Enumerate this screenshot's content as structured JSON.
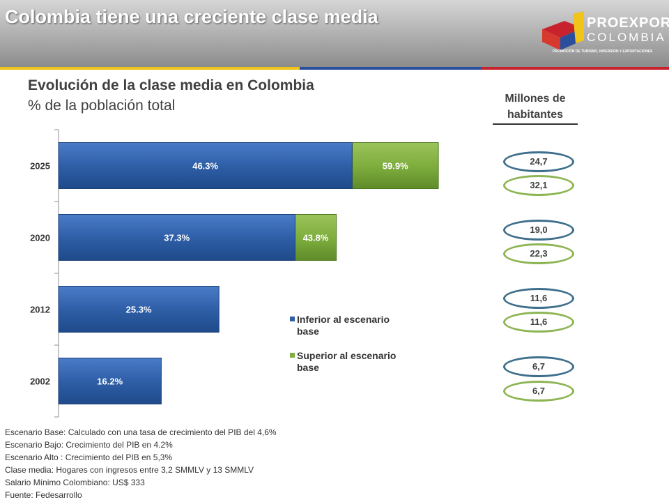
{
  "header": {
    "title": "Colombia tiene una creciente clase media",
    "logo_name": "PROEXPORT",
    "logo_sub": "COLOMBIA",
    "logo_tagline": "PROMOCIÓN DE TURISMO, INVERSIÓN Y EXPORTACIONES"
  },
  "chart_data": {
    "type": "bar",
    "orientation": "horizontal",
    "title": "Evolución de la clase media en Colombia",
    "subtitle": "% de la población total",
    "categories": [
      "2025",
      "2020",
      "2012",
      "2002"
    ],
    "series": [
      {
        "name": "Inferior al escenario base",
        "values": [
          46.3,
          37.3,
          25.3,
          16.2
        ],
        "labels": [
          "46.3%",
          "37.3%",
          "25.3%",
          "16.2%"
        ],
        "color": "#2f5fa7"
      },
      {
        "name": "Superior al escenario base",
        "values": [
          59.9,
          43.8,
          null,
          null
        ],
        "labels": [
          "59.9%",
          "43.8%",
          "",
          ""
        ],
        "color": "#7fae3e"
      }
    ],
    "xlim": [
      0,
      60
    ],
    "grid": false,
    "legend_position": "center-right"
  },
  "millones": {
    "title_line1": "Millones de",
    "title_line2": "habitantes",
    "values": [
      {
        "low": "24,7",
        "high": "32,1"
      },
      {
        "low": "19,0",
        "high": "22,3"
      },
      {
        "low": "11,6",
        "high": "11,6"
      },
      {
        "low": "6,7",
        "high": "6,7"
      }
    ]
  },
  "notes": [
    "Escenario Base: Calculado con una tasa de  crecimiento del PIB  del 4,6%",
    "Escenario Bajo: Crecimiento del PIB en 4.2%",
    "Escenario Alto : Crecimiento del PIB en 5,3%",
    "Clase media: Hogares con ingresos entre 3,2 SMMLV y 13 SMMLV",
    "Salario Mínimo Colombiano: US$ 333",
    "Fuente: Fedesarrollo"
  ]
}
